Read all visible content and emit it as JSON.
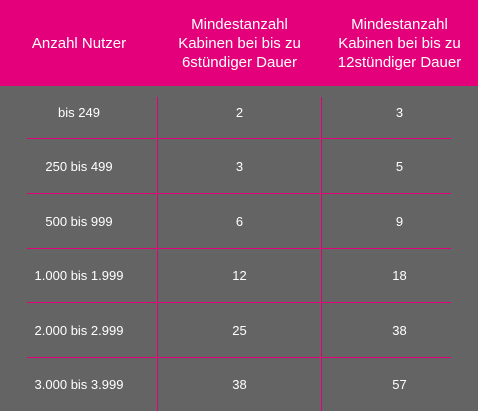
{
  "table": {
    "headers": [
      "Anzahl Nutzer",
      "Mindestanzahl\nKabinen bei bis zu\n6stündiger Dauer",
      "Mindestanzahl\nKabinen bei bis zu\n12stündiger Dauer"
    ],
    "rows": [
      [
        "bis 249",
        "2",
        "3"
      ],
      [
        "250 bis 499",
        "3",
        "5"
      ],
      [
        "500 bis 999",
        "6",
        "9"
      ],
      [
        "1.000 bis 1.999",
        "12",
        "18"
      ],
      [
        "2.000 bis 2.999",
        "25",
        "38"
      ],
      [
        "3.000 bis 3.999",
        "38",
        "57"
      ]
    ]
  },
  "colors": {
    "accent": "#e4007a",
    "body_background": "#646464",
    "text": "#ffffff"
  }
}
